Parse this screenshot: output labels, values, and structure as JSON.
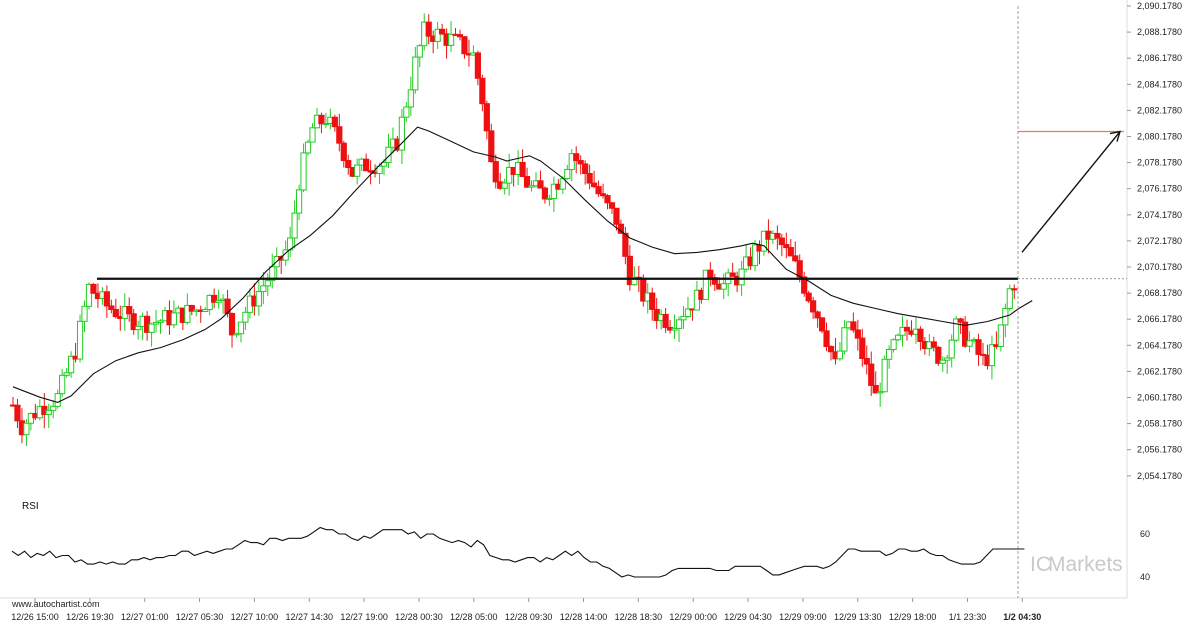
{
  "chart_data": {
    "type": "candlestick",
    "ylim": [
      2053.178,
      2090.178
    ],
    "y_ticks": [
      "2,054.1780",
      "2,056.1780",
      "2,058.1780",
      "2,060.1780",
      "2,062.1780",
      "2,064.1780",
      "2,066.1780",
      "2,068.1780",
      "2,070.1780",
      "2,072.1780",
      "2,074.1780",
      "2,076.1780",
      "2,078.1780",
      "2,080.1780",
      "2,082.1780",
      "2,084.1780",
      "2,086.1780",
      "2,088.1780",
      "2,090.1780"
    ],
    "x_ticks": [
      "12/26 15:00",
      "12/26 19:30",
      "12/27 01:00",
      "12/27 05:30",
      "12/27 10:00",
      "12/27 14:30",
      "12/27 19:00",
      "12/28 00:30",
      "12/28 05:00",
      "12/28 09:30",
      "12/28 14:00",
      "12/28 18:30",
      "12/29 00:00",
      "12/29 04:30",
      "12/29 09:00",
      "12/29 13:30",
      "12/29 18:00",
      "1/1 23:30",
      "1/2 04:30"
    ],
    "support_level": 2069.28,
    "target_level": 2080.56,
    "ma_path": [
      [
        0,
        2061.0
      ],
      [
        12,
        2060.2
      ],
      [
        20,
        2059.8
      ],
      [
        26,
        2060.3
      ],
      [
        36,
        2062.0
      ],
      [
        46,
        2063.0
      ],
      [
        56,
        2063.6
      ],
      [
        66,
        2064.0
      ],
      [
        76,
        2064.6
      ],
      [
        86,
        2065.4
      ],
      [
        93,
        2066.2
      ],
      [
        103,
        2067.8
      ],
      [
        113,
        2069.8
      ],
      [
        123,
        2071.4
      ],
      [
        133,
        2072.6
      ],
      [
        143,
        2074.1
      ],
      [
        153,
        2076.0
      ],
      [
        163,
        2077.8
      ],
      [
        173,
        2079.5
      ],
      [
        181,
        2080.9
      ],
      [
        186,
        2080.6
      ],
      [
        196,
        2079.8
      ],
      [
        206,
        2079.0
      ],
      [
        216,
        2078.6
      ],
      [
        221,
        2078.3
      ],
      [
        226,
        2078.5
      ],
      [
        231,
        2078.7
      ],
      [
        236,
        2078.3
      ],
      [
        246,
        2077.0
      ],
      [
        256,
        2075.3
      ],
      [
        266,
        2073.7
      ],
      [
        276,
        2072.4
      ],
      [
        286,
        2071.7
      ],
      [
        296,
        2071.2
      ],
      [
        306,
        2071.3
      ],
      [
        316,
        2071.5
      ],
      [
        326,
        2071.8
      ],
      [
        331,
        2072.0
      ],
      [
        336,
        2071.8
      ],
      [
        346,
        2070.0
      ],
      [
        356,
        2069.1
      ],
      [
        366,
        2068.0
      ],
      [
        376,
        2067.4
      ],
      [
        386,
        2067.0
      ],
      [
        396,
        2066.6
      ],
      [
        406,
        2066.3
      ],
      [
        416,
        2066.0
      ],
      [
        426,
        2065.7
      ],
      [
        436,
        2066.0
      ],
      [
        446,
        2066.5
      ],
      [
        450,
        2067.0
      ],
      [
        456,
        2067.6
      ]
    ],
    "rsi_path": [
      [
        0,
        52
      ],
      [
        2,
        50
      ],
      [
        4,
        52
      ],
      [
        6,
        49
      ],
      [
        8,
        51
      ],
      [
        10,
        50
      ],
      [
        12,
        52
      ],
      [
        14,
        49
      ],
      [
        16,
        50
      ],
      [
        18,
        50
      ],
      [
        20,
        47
      ],
      [
        22,
        48
      ],
      [
        24,
        46
      ],
      [
        26,
        46
      ],
      [
        28,
        47
      ],
      [
        30,
        46
      ],
      [
        32,
        47
      ],
      [
        34,
        46
      ],
      [
        36,
        46
      ],
      [
        38,
        48
      ],
      [
        40,
        48
      ],
      [
        42,
        49
      ],
      [
        44,
        48
      ],
      [
        46,
        49
      ],
      [
        48,
        49
      ],
      [
        50,
        50
      ],
      [
        52,
        50
      ],
      [
        54,
        52
      ],
      [
        56,
        52
      ],
      [
        58,
        50
      ],
      [
        60,
        51
      ],
      [
        62,
        52
      ],
      [
        64,
        51
      ],
      [
        66,
        52
      ],
      [
        68,
        53
      ],
      [
        70,
        53
      ],
      [
        72,
        55
      ],
      [
        74,
        57
      ],
      [
        76,
        56
      ],
      [
        78,
        56
      ],
      [
        80,
        55
      ],
      [
        82,
        58
      ],
      [
        84,
        58
      ],
      [
        86,
        57
      ],
      [
        88,
        58
      ],
      [
        90,
        58
      ],
      [
        92,
        58
      ],
      [
        94,
        59
      ],
      [
        96,
        61
      ],
      [
        98,
        63
      ],
      [
        100,
        62
      ],
      [
        102,
        62
      ],
      [
        104,
        60
      ],
      [
        106,
        60
      ],
      [
        108,
        58
      ],
      [
        110,
        57
      ],
      [
        112,
        59
      ],
      [
        114,
        58
      ],
      [
        116,
        60
      ],
      [
        118,
        62
      ],
      [
        120,
        62
      ],
      [
        122,
        62
      ],
      [
        124,
        62
      ],
      [
        126,
        60
      ],
      [
        128,
        61
      ],
      [
        130,
        58
      ],
      [
        132,
        60
      ],
      [
        134,
        60
      ],
      [
        136,
        58
      ],
      [
        138,
        57
      ],
      [
        140,
        56
      ],
      [
        142,
        57
      ],
      [
        144,
        56
      ],
      [
        146,
        54
      ],
      [
        148,
        57
      ],
      [
        150,
        55
      ],
      [
        152,
        50
      ],
      [
        154,
        49
      ],
      [
        156,
        48
      ],
      [
        158,
        48
      ],
      [
        160,
        47
      ],
      [
        162,
        48
      ],
      [
        164,
        49
      ],
      [
        166,
        49
      ],
      [
        168,
        47
      ],
      [
        170,
        49
      ],
      [
        172,
        48
      ],
      [
        174,
        50
      ],
      [
        176,
        52
      ],
      [
        178,
        50
      ],
      [
        180,
        52
      ],
      [
        182,
        49
      ],
      [
        184,
        47
      ],
      [
        186,
        47
      ],
      [
        188,
        45
      ],
      [
        190,
        44
      ],
      [
        192,
        42
      ],
      [
        194,
        40
      ],
      [
        196,
        41
      ],
      [
        198,
        40
      ],
      [
        200,
        40
      ],
      [
        202,
        40
      ],
      [
        204,
        40
      ],
      [
        206,
        40
      ],
      [
        208,
        41
      ],
      [
        210,
        43
      ],
      [
        212,
        44
      ],
      [
        214,
        44
      ],
      [
        216,
        44
      ],
      [
        218,
        44
      ],
      [
        220,
        44
      ],
      [
        222,
        44
      ],
      [
        224,
        43
      ],
      [
        226,
        43
      ],
      [
        228,
        43
      ],
      [
        230,
        45
      ],
      [
        232,
        45
      ],
      [
        234,
        45
      ],
      [
        236,
        45
      ],
      [
        238,
        45
      ],
      [
        240,
        43
      ],
      [
        242,
        41
      ],
      [
        244,
        41
      ],
      [
        246,
        42
      ],
      [
        248,
        43
      ],
      [
        250,
        44
      ],
      [
        252,
        45
      ],
      [
        254,
        45
      ],
      [
        256,
        45
      ],
      [
        258,
        44
      ],
      [
        260,
        45
      ],
      [
        262,
        47
      ],
      [
        264,
        50
      ],
      [
        266,
        53
      ],
      [
        268,
        53
      ],
      [
        270,
        52
      ],
      [
        272,
        52
      ],
      [
        274,
        52
      ],
      [
        276,
        52
      ],
      [
        278,
        50
      ],
      [
        280,
        51
      ],
      [
        282,
        53
      ],
      [
        284,
        53
      ],
      [
        286,
        52
      ],
      [
        288,
        52
      ],
      [
        290,
        53
      ],
      [
        292,
        51
      ],
      [
        294,
        50
      ],
      [
        296,
        50
      ],
      [
        298,
        48
      ],
      [
        300,
        47
      ],
      [
        302,
        46
      ],
      [
        304,
        46
      ],
      [
        306,
        46
      ],
      [
        308,
        47
      ],
      [
        310,
        50
      ],
      [
        312,
        53
      ],
      [
        314,
        53
      ],
      [
        316,
        53
      ],
      [
        318,
        53
      ],
      [
        320,
        53
      ],
      [
        322,
        53
      ]
    ],
    "rsi_ticks": [
      "60",
      "40"
    ],
    "rsi_label": "RSI",
    "colors": {
      "up": "#22cc22",
      "down": "#ee1111",
      "support": "#111111",
      "target": "#ff7733",
      "ma": "#111111",
      "arrow": "#111111",
      "rsi": "#111111",
      "grid": "#cccccc"
    }
  },
  "labels": {
    "rsi": "RSI",
    "watermark_url": "www.autochartist.com",
    "brand_ic": "IC",
    "brand_markets": "Markets"
  }
}
